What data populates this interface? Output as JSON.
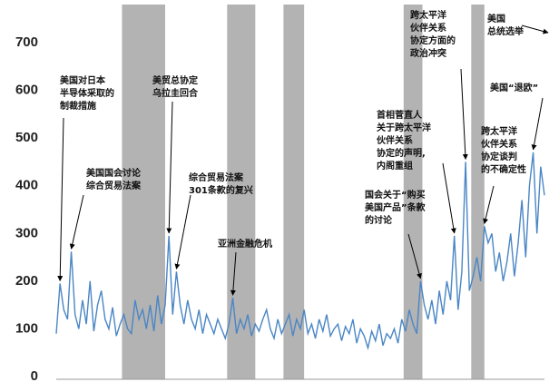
{
  "chart_data": {
    "type": "line",
    "color": "#4a86c5",
    "values": [
      90,
      195,
      140,
      120,
      262,
      130,
      100,
      160,
      110,
      200,
      95,
      150,
      180,
      120,
      100,
      145,
      85,
      110,
      130,
      100,
      90,
      160,
      120,
      140,
      100,
      150,
      95,
      170,
      110,
      150,
      295,
      130,
      220,
      150,
      110,
      160,
      120,
      100,
      140,
      90,
      130,
      110,
      90,
      120,
      100,
      80,
      110,
      165,
      90,
      120,
      100,
      130,
      85,
      110,
      95,
      120,
      140,
      100,
      80,
      120,
      90,
      110,
      130,
      85,
      120,
      100,
      140,
      90,
      110,
      80,
      120,
      95,
      130,
      85,
      100,
      110,
      75,
      105,
      90,
      120,
      70,
      100,
      85,
      60,
      95,
      75,
      110,
      65,
      90,
      80,
      100,
      70,
      120,
      95,
      140,
      110,
      90,
      200,
      150,
      120,
      160,
      110,
      180,
      130,
      200,
      160,
      295,
      140,
      220,
      450,
      180,
      210,
      250,
      200,
      315,
      280,
      300,
      220,
      260,
      200,
      240,
      300,
      210,
      280,
      370,
      250,
      400,
      470,
      300,
      440,
      380
    ],
    "xlim": [
      0,
      130
    ],
    "ylim": [
      0,
      700
    ],
    "yticks": [
      0,
      100,
      200,
      300,
      400,
      500,
      600,
      700
    ],
    "shaded_ranges": [
      [
        17.5,
        29
      ],
      [
        45.5,
        53
      ],
      [
        60.5,
        66
      ],
      [
        92.5,
        97.5
      ],
      [
        110.5,
        114
      ]
    ],
    "shade_color": "#b3b3b3",
    "annotations": [
      {
        "lines": [
          "美国对日本",
          "半导体采取的",
          "制裁措施"
        ],
        "point": 1
      },
      {
        "lines": [
          "美国国会讨论",
          "综合贸易法案"
        ],
        "point": 4
      },
      {
        "lines": [
          "美贸总协定",
          "乌拉圭回合"
        ],
        "point": 30
      },
      {
        "lines": [
          "综合贸易法案",
          "301条款的复兴"
        ],
        "point": 32
      },
      {
        "lines": [
          "亚洲金融危机"
        ],
        "point": 47
      },
      {
        "lines": [
          "国会关于“购买",
          "美国产品”条款",
          "的讨论"
        ],
        "point": 97
      },
      {
        "lines": [
          "首相菅直人",
          "关于跨太平洋",
          "伙伴关系",
          "协定的声明,",
          "内阁重组"
        ],
        "point": 106
      },
      {
        "lines": [
          "跨太平洋",
          "伙伴关系",
          "协定方面的",
          "政治冲突"
        ],
        "point": 109
      },
      {
        "lines": [
          "跨太平洋",
          "伙伴关系",
          "协定谈判",
          "的不确定性"
        ],
        "point": 114
      },
      {
        "lines": [
          "美国",
          "总统选举"
        ]
      },
      {
        "lines": [
          "美国“退欧”"
        ],
        "point": 127
      }
    ]
  }
}
